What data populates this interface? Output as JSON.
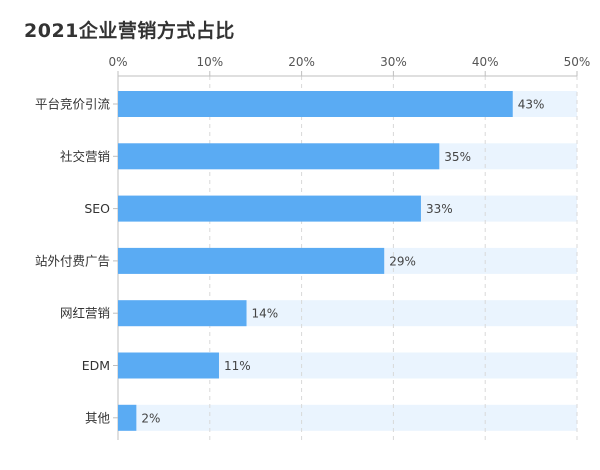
{
  "chart_data": {
    "type": "bar",
    "orientation": "horizontal",
    "title": "2021企业营销方式占比",
    "categories": [
      "平台竞价引流",
      "社交营销",
      "SEO",
      "站外付费广告",
      "网红营销",
      "EDM",
      "其他"
    ],
    "values": [
      43,
      35,
      33,
      29,
      14,
      11,
      2
    ],
    "value_labels": [
      "43%",
      "35%",
      "33%",
      "29%",
      "14%",
      "11%",
      "2%"
    ],
    "xlim": [
      0,
      50
    ],
    "xticks": [
      0,
      10,
      20,
      30,
      40,
      50
    ],
    "xtick_labels": [
      "0%",
      "10%",
      "20%",
      "30%",
      "40%",
      "50%"
    ],
    "xaxis_position": "top",
    "grid": true,
    "colors": {
      "bar": "#5aabf3",
      "track": "#eaf4fe",
      "grid": "#d9d9d9"
    }
  }
}
